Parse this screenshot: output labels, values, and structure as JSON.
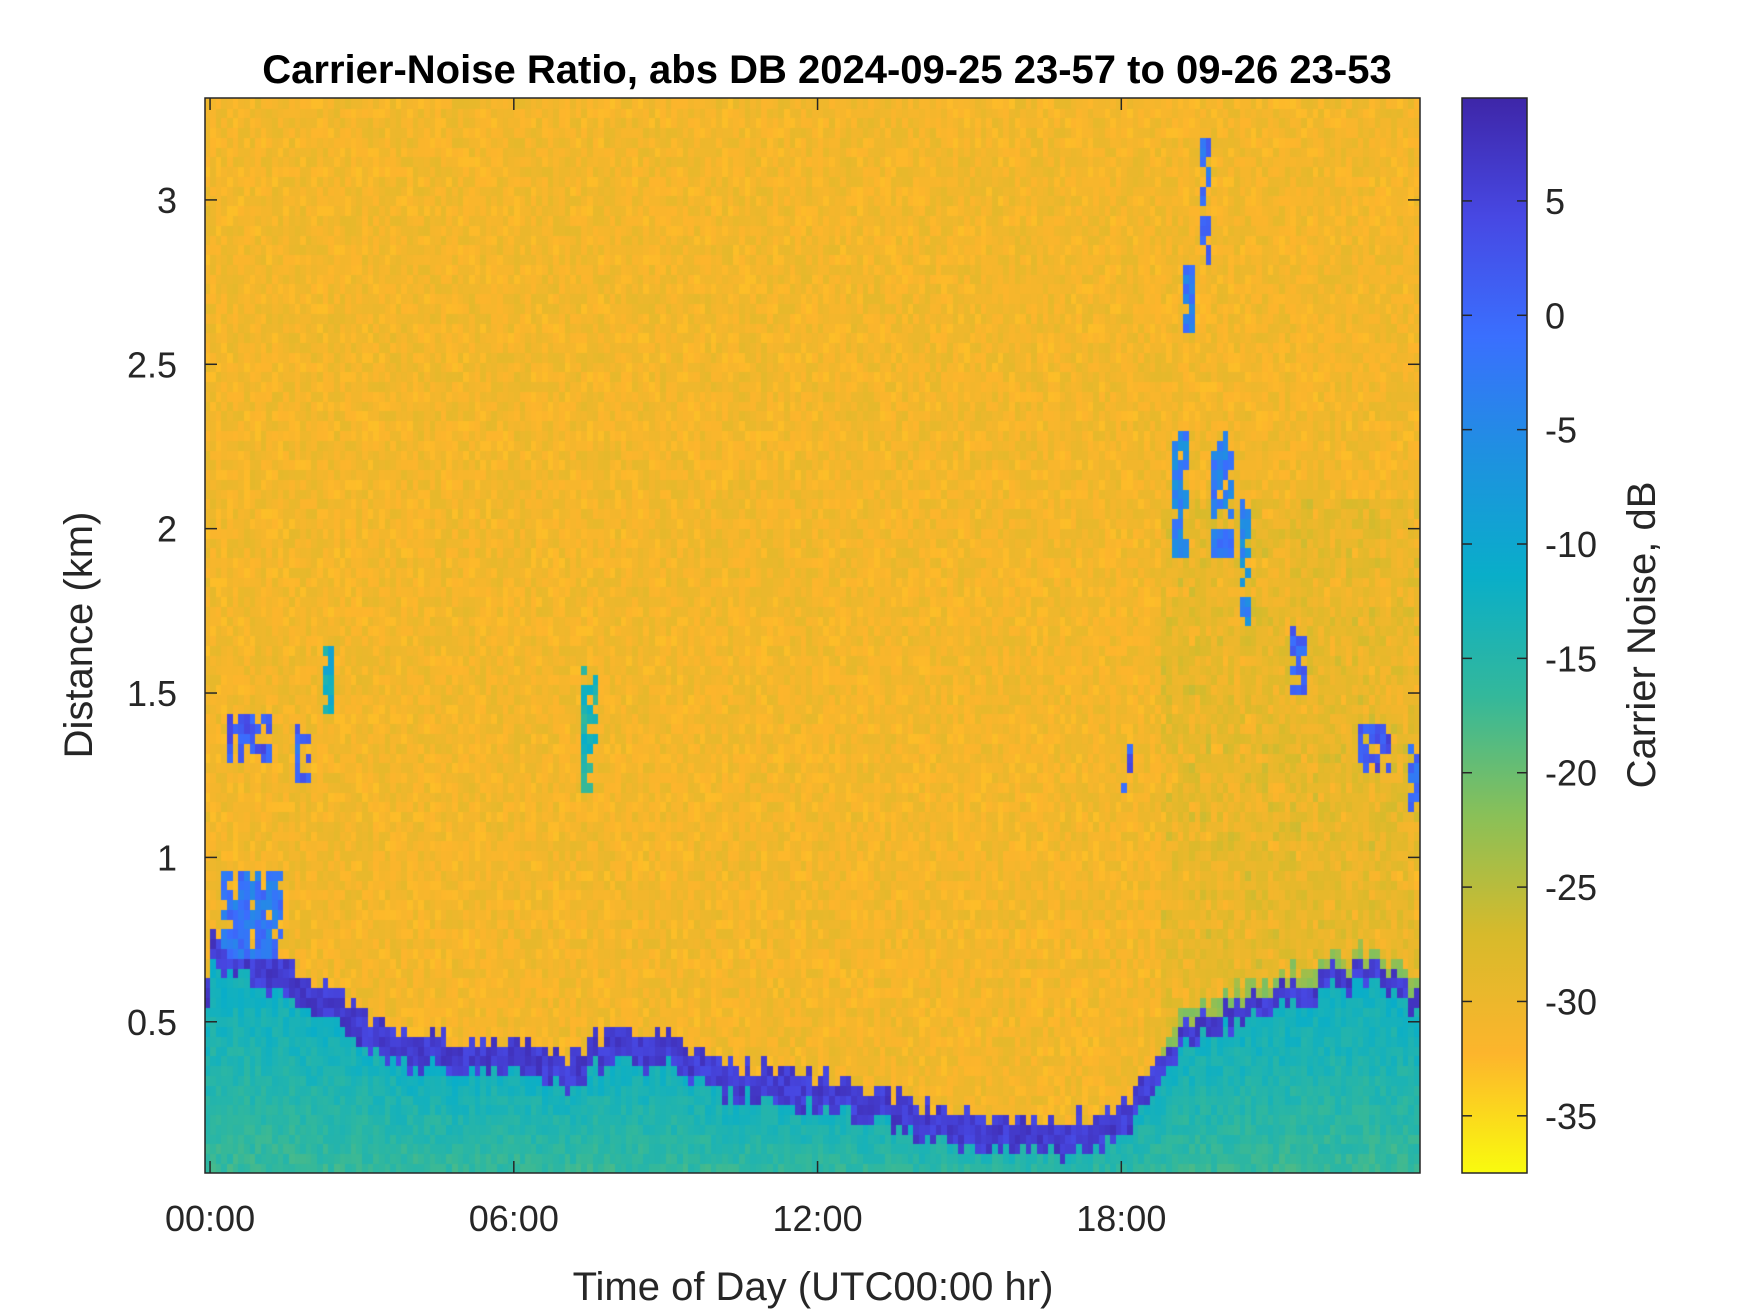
{
  "chart_data": {
    "type": "heatmap",
    "title": "Carrier-Noise Ratio, abs DB 2024-09-25 23-57 to 09-26 23-53",
    "xlabel": "Time of Day (UTC00:00 hr)",
    "ylabel": "Distance (km)",
    "colorbar_label": "Carrier Noise, dB",
    "x_ticks": [
      {
        "value": 0,
        "label": "00:00"
      },
      {
        "value": 6,
        "label": "06:00"
      },
      {
        "value": 12,
        "label": "12:00"
      },
      {
        "value": 18,
        "label": "18:00"
      }
    ],
    "y_ticks": [
      {
        "value": 0.5,
        "label": "0.5"
      },
      {
        "value": 1,
        "label": "1"
      },
      {
        "value": 1.5,
        "label": "1.5"
      },
      {
        "value": 2,
        "label": "2"
      },
      {
        "value": 2.5,
        "label": "2.5"
      },
      {
        "value": 3,
        "label": "3"
      }
    ],
    "colorbar_ticks": [
      {
        "value": 5,
        "label": "5"
      },
      {
        "value": 0,
        "label": "0"
      },
      {
        "value": -5,
        "label": "-5"
      },
      {
        "value": -10,
        "label": "-10"
      },
      {
        "value": -15,
        "label": "-15"
      },
      {
        "value": -20,
        "label": "-20"
      },
      {
        "value": -25,
        "label": "-25"
      },
      {
        "value": -30,
        "label": "-30"
      },
      {
        "value": -35,
        "label": "-35"
      }
    ],
    "xlim": [
      -0.1,
      23.9
    ],
    "ylim": [
      0.04,
      3.31
    ],
    "clim": [
      -37.5,
      9.5
    ],
    "colormap": [
      "#f9fb0e",
      "#fdb52c",
      "#d7ba2b",
      "#89c058",
      "#33b89b",
      "#09aec9",
      "#1e91e0",
      "#3a6ffe",
      "#4748e3",
      "#3e26a8"
    ],
    "background_value": -31,
    "boundary_layer_top_km": [
      [
        0,
        0.72
      ],
      [
        1,
        0.68
      ],
      [
        2,
        0.6
      ],
      [
        3,
        0.48
      ],
      [
        4,
        0.42
      ],
      [
        5,
        0.41
      ],
      [
        6,
        0.4
      ],
      [
        7,
        0.36
      ],
      [
        8,
        0.45
      ],
      [
        9,
        0.43
      ],
      [
        10,
        0.35
      ],
      [
        11,
        0.32
      ],
      [
        12,
        0.3
      ],
      [
        13,
        0.27
      ],
      [
        14,
        0.22
      ],
      [
        15,
        0.18
      ],
      [
        16,
        0.17
      ],
      [
        17,
        0.17
      ],
      [
        18,
        0.2
      ],
      [
        19,
        0.45
      ],
      [
        20,
        0.55
      ],
      [
        21,
        0.6
      ],
      [
        22,
        0.65
      ],
      [
        23,
        0.68
      ],
      [
        23.9,
        0.6
      ]
    ],
    "features": [
      {
        "t0": 0.3,
        "t1": 1.2,
        "d0": 1.3,
        "d1": 1.45,
        "value": 2
      },
      {
        "t0": 1.7,
        "t1": 2.0,
        "d0": 1.22,
        "d1": 1.42,
        "value": 0
      },
      {
        "t0": 2.2,
        "t1": 2.4,
        "d0": 1.45,
        "d1": 1.65,
        "value": -12
      },
      {
        "t0": 7.4,
        "t1": 7.7,
        "d0": 1.2,
        "d1": 1.58,
        "value": -14
      },
      {
        "t0": 19.2,
        "t1": 19.5,
        "d0": 2.6,
        "d1": 2.8,
        "value": -2
      },
      {
        "t0": 19.6,
        "t1": 19.8,
        "d0": 2.8,
        "d1": 3.2,
        "value": -1
      },
      {
        "t0": 19.0,
        "t1": 19.3,
        "d0": 1.9,
        "d1": 2.3,
        "value": -4
      },
      {
        "t0": 19.8,
        "t1": 20.2,
        "d0": 1.9,
        "d1": 2.3,
        "value": -3
      },
      {
        "t0": 20.3,
        "t1": 20.6,
        "d0": 1.7,
        "d1": 2.1,
        "value": -5
      },
      {
        "t0": 21.4,
        "t1": 21.7,
        "d0": 1.5,
        "d1": 1.7,
        "value": 0
      },
      {
        "t0": 22.7,
        "t1": 23.3,
        "d0": 1.25,
        "d1": 1.4,
        "value": 3
      },
      {
        "t0": 23.7,
        "t1": 23.9,
        "d0": 1.15,
        "d1": 1.35,
        "value": 0
      },
      {
        "t0": 18.0,
        "t1": 18.2,
        "d0": 1.2,
        "d1": 1.35,
        "value": 2
      },
      {
        "t0": 0.2,
        "t1": 1.4,
        "d0": 0.7,
        "d1": 0.95,
        "value": -2
      }
    ]
  }
}
